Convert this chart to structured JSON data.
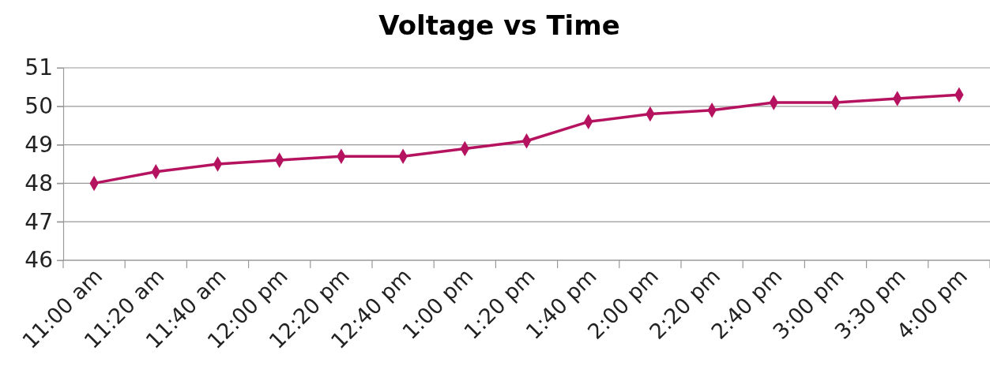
{
  "chart_data": {
    "type": "line",
    "title": "Voltage vs Time",
    "categories": [
      "11:00 am",
      "11:20 am",
      "11:40 am",
      "12:00 pm",
      "12:20 pm",
      "12:40 pm",
      "1:00 pm",
      "1:20 pm",
      "1:40 pm",
      "2:00 pm",
      "2:20 pm",
      "2:40 pm",
      "3:00 pm",
      "3:30 pm",
      "4:00 pm"
    ],
    "series": [
      {
        "color": "#b5135f",
        "values": [
          48.0,
          48.3,
          48.5,
          48.6,
          48.7,
          48.7,
          48.9,
          49.1,
          49.6,
          49.8,
          49.9,
          50.1,
          50.1,
          50.2,
          50.3
        ]
      }
    ],
    "ylim": [
      46,
      51
    ],
    "yticks": [
      46,
      47,
      48,
      49,
      50,
      51
    ],
    "grid": "y",
    "marker": "diamond",
    "line_style": "solid"
  }
}
